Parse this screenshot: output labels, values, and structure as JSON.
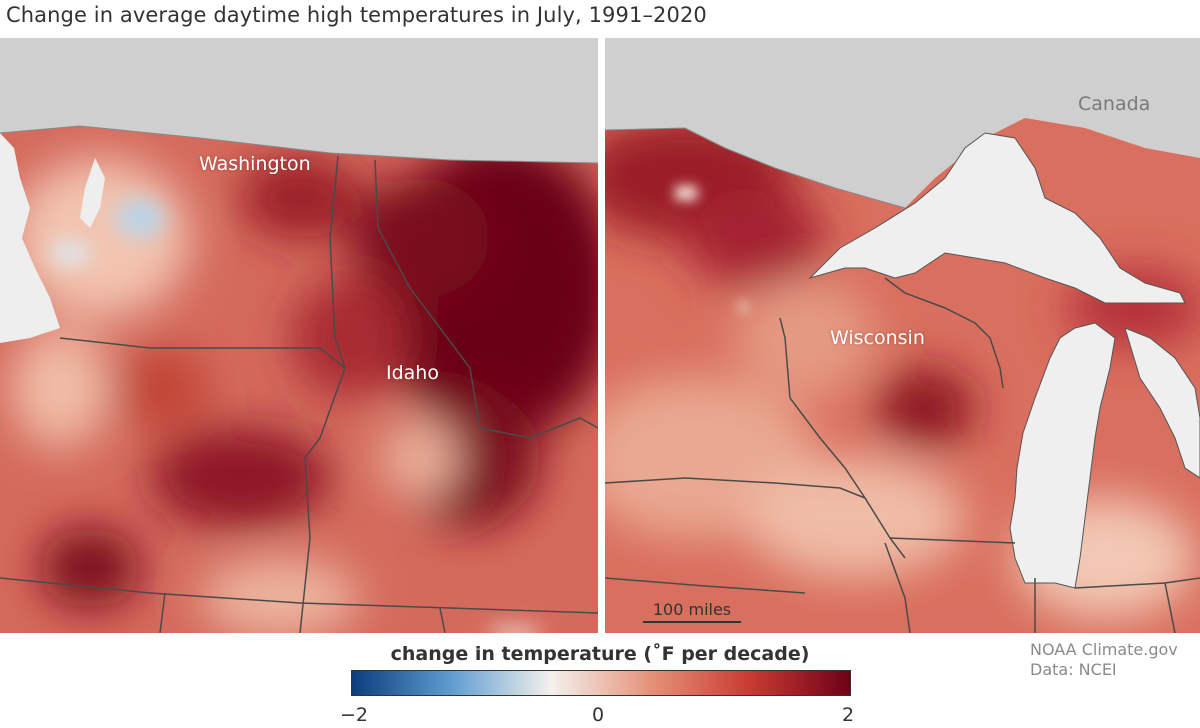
{
  "title": "Change in average daytime high temperatures in July, 1991–2020",
  "labels": {
    "washington": "Washington",
    "idaho": "Idaho",
    "wisconsin": "Wisconsin",
    "canada": "Canada"
  },
  "scale_bar": {
    "label": "100 miles"
  },
  "legend": {
    "title": "change in temperature (˚F per decade)",
    "min_label": "−2",
    "mid_label": "0",
    "max_label": "2",
    "min_value": -2,
    "max_value": 2,
    "colors": [
      "#0c3d7e",
      "#5f9dd0",
      "#f4f1ec",
      "#e59279",
      "#c93a32",
      "#6d0217"
    ]
  },
  "credit": {
    "line1": "NOAA Climate.gov",
    "line2": "Data: NCEI"
  },
  "colors": {
    "land_outside": "#cfcfcf",
    "water": "#f0f0f0",
    "border": "#4a4a4a",
    "anomaly_base": "#d7665a"
  }
}
